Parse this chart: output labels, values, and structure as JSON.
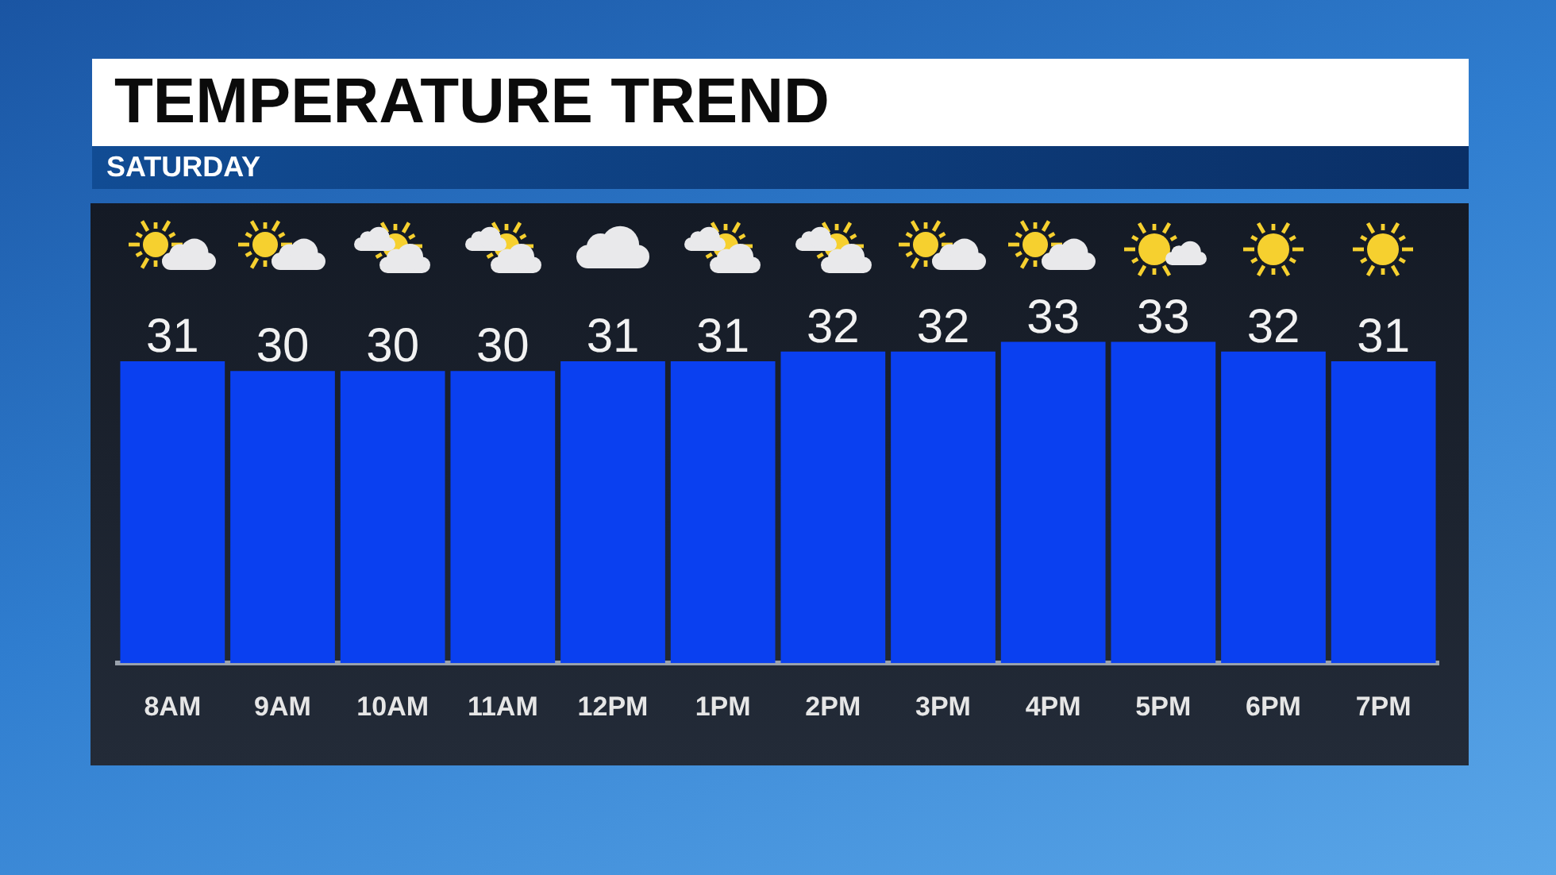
{
  "chart_data": {
    "type": "bar",
    "title": "TEMPERATURE TREND",
    "subtitle": "SATURDAY",
    "categories": [
      "8AM",
      "9AM",
      "10AM",
      "11AM",
      "12PM",
      "1PM",
      "2PM",
      "3PM",
      "4PM",
      "5PM",
      "6PM",
      "7PM"
    ],
    "values": [
      31,
      30,
      30,
      30,
      31,
      31,
      32,
      32,
      33,
      33,
      32,
      31
    ],
    "color": "#0a40f0",
    "tick_labels": "x",
    "data_labels": true
  }
}
